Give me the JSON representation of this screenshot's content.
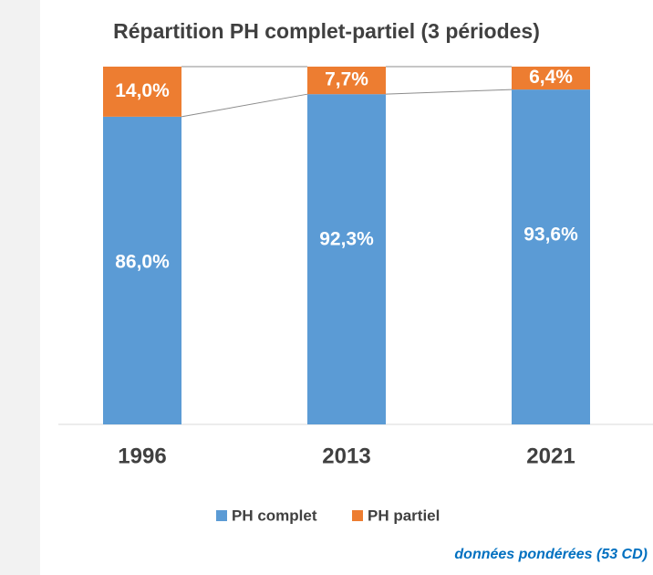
{
  "chart_data": {
    "type": "stacked_bar",
    "title": "Répartition PH complet-partiel (3 périodes)",
    "categories": [
      "1996",
      "2013",
      "2021"
    ],
    "series": [
      {
        "name": "PH complet",
        "color": "#5b9bd5",
        "values": [
          86.0,
          92.3,
          93.6
        ],
        "value_labels": [
          "86,0%",
          "92,3%",
          "93,6%"
        ]
      },
      {
        "name": "PH partiel",
        "color": "#ed7d31",
        "values": [
          14.0,
          7.7,
          6.4
        ],
        "value_labels": [
          "14,0%",
          "7,7%",
          "6,4%"
        ]
      }
    ],
    "ylim": [
      0,
      100
    ],
    "series_lines": true,
    "legend": "bottom",
    "annotation": "données pondérées (53 CD)"
  }
}
